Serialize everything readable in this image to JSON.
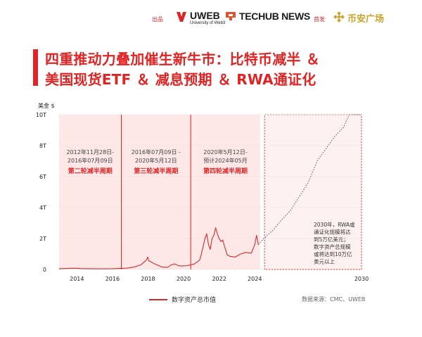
{
  "header": {
    "publisher_label": "出品",
    "uweb": {
      "name": "UWEB",
      "sub": "University of Web3"
    },
    "techub": {
      "name": "TECHUB NEWS"
    },
    "first_release_label": "首发",
    "binance": {
      "name": "币安广场"
    }
  },
  "title": {
    "line1": "四重推动力叠加催生新牛市：比特币减半 ＆",
    "line2": "美国现货ETF ＆ 减息预期 ＆ RWA通证化"
  },
  "chart_data": {
    "type": "line",
    "ylabel": "美金 $",
    "xlim": [
      2013,
      2030
    ],
    "ylim": [
      0,
      10
    ],
    "yticks": [
      {
        "v": 0,
        "label": "0"
      },
      {
        "v": 2,
        "label": "2T"
      },
      {
        "v": 4,
        "label": "4T"
      },
      {
        "v": 6,
        "label": "6T"
      },
      {
        "v": 8,
        "label": "8T"
      },
      {
        "v": 10,
        "label": "10T"
      }
    ],
    "xticks": [
      {
        "v": 2014,
        "label": "2014"
      },
      {
        "v": 2016,
        "label": "2016"
      },
      {
        "v": 2018,
        "label": "2018"
      },
      {
        "v": 2020,
        "label": "2020"
      },
      {
        "v": 2022,
        "label": "2022"
      },
      {
        "v": 2024,
        "label": "2024"
      },
      {
        "v": 2030,
        "label": "2030"
      }
    ],
    "series": [
      {
        "name": "数字资产总市值",
        "color": "#d62b2b",
        "x": [
          2013.0,
          2013.9,
          2014.2,
          2015.0,
          2016.0,
          2016.8,
          2017.2,
          2017.6,
          2017.9,
          2017.98,
          2018.05,
          2018.15,
          2018.3,
          2018.5,
          2018.8,
          2019.1,
          2019.3,
          2019.5,
          2019.7,
          2019.9,
          2020.2,
          2020.6,
          2020.9,
          2021.0,
          2021.1,
          2021.2,
          2021.3,
          2021.4,
          2021.5,
          2021.6,
          2021.7,
          2021.8,
          2021.9,
          2022.0,
          2022.1,
          2022.2,
          2022.3,
          2022.45,
          2022.6,
          2022.9,
          2023.2,
          2023.5,
          2023.8,
          2024.0,
          2024.1,
          2024.2
        ],
        "y": [
          0.05,
          0.08,
          0.06,
          0.04,
          0.05,
          0.08,
          0.15,
          0.3,
          0.6,
          0.8,
          0.55,
          0.5,
          0.4,
          0.3,
          0.15,
          0.14,
          0.3,
          0.35,
          0.25,
          0.22,
          0.25,
          0.35,
          0.6,
          1.0,
          1.5,
          2.0,
          2.3,
          1.6,
          1.3,
          2.0,
          2.2,
          2.7,
          2.3,
          2.0,
          1.8,
          1.9,
          1.5,
          0.95,
          0.85,
          0.8,
          1.0,
          1.1,
          1.05,
          1.6,
          2.2,
          1.6
        ]
      },
      {
        "name": "预测",
        "style": "dotted",
        "color": "#555555",
        "x": [
          2024.2,
          2024.5,
          2025.0,
          2025.5,
          2026.0,
          2026.5,
          2027.0,
          2027.5,
          2028.0,
          2028.5,
          2029.0,
          2029.3,
          2030.0
        ],
        "y": [
          1.6,
          2.0,
          2.5,
          3.2,
          3.8,
          4.7,
          5.6,
          7.0,
          7.8,
          8.6,
          9.2,
          10.0,
          10.0
        ]
      }
    ],
    "periods": [
      {
        "start": 2013.0,
        "end": 2016.5,
        "dates": "2012年11月28日-\n2016年07月09日",
        "label": "第二轮减半周期"
      },
      {
        "start": 2016.5,
        "end": 2020.4,
        "dates": "2016年07月09日 -\n2020年5月12日",
        "label": "第三轮减半周期"
      },
      {
        "start": 2020.4,
        "end": 2024.3,
        "dates": "2020年5月12日-\n预计2024年05月",
        "label": "第四轮减半周期"
      }
    ],
    "forecast_box": {
      "start": 2024.55,
      "end": 2030.0
    },
    "annotation": "2030年，RWA或\n通证化规模将达\n到5万亿美元；\n数字资产总规模\n或将达到10万亿\n美元以上"
  },
  "legend": {
    "label": "数字资产总市值"
  },
  "source": "数据来源：CMC、UWEB",
  "colors": {
    "accent": "#e02424",
    "period_fill": "#fde7e7",
    "forecast_fill": "#fdf1f1",
    "gold": "#c9a227"
  }
}
